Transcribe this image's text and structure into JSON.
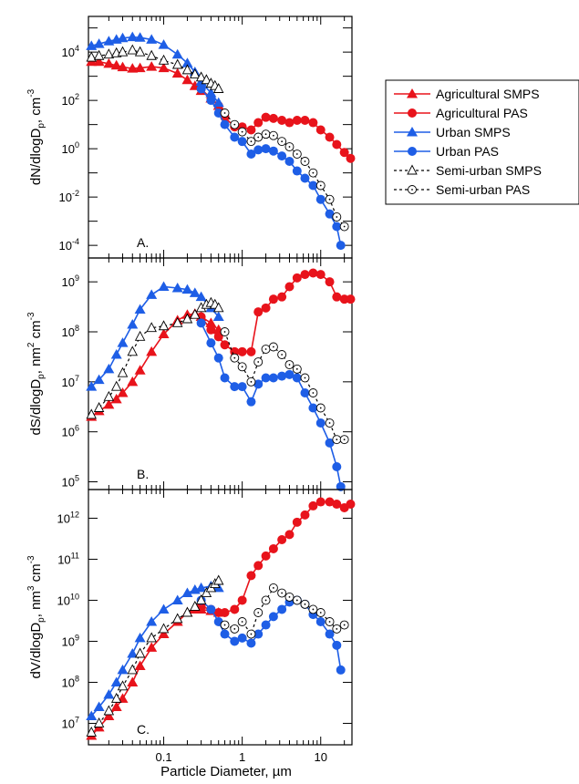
{
  "figure": {
    "xlabel": "Particle Diameter, µm",
    "panel_labels": [
      "A.",
      "B.",
      "C."
    ]
  },
  "legend": {
    "placement": "right",
    "entries": [
      {
        "label": "Agricultural SMPS",
        "color": "#e8131b",
        "marker": "triangle",
        "line": "solid"
      },
      {
        "label": "Agricultural PAS",
        "color": "#e8131b",
        "marker": "circle",
        "line": "solid"
      },
      {
        "label": "Urban SMPS",
        "color": "#1e5ee6",
        "marker": "triangle",
        "line": "solid"
      },
      {
        "label": "Urban PAS",
        "color": "#1e5ee6",
        "marker": "circle",
        "line": "solid"
      },
      {
        "label": "Semi-urban SMPS",
        "color": "#000000",
        "marker": "open-triangle",
        "line": "dashed"
      },
      {
        "label": "Semi-urban PAS",
        "color": "#000000",
        "marker": "open-circle-dot",
        "line": "dashed"
      }
    ]
  },
  "chart_data": [
    {
      "type": "line",
      "panel": "A.",
      "ylabel": {
        "base": "dN/dlogD",
        "sub": "p",
        "unit": ", cm",
        "sup": "-3"
      },
      "x_scale": "log",
      "y_scale": "log",
      "xlim": [
        0.011,
        25
      ],
      "ylim": [
        3e-05,
        300000
      ],
      "x_ticks": [
        "0.1",
        "1",
        "10"
      ],
      "y_ticks": [
        {
          "exp": "4",
          "value": 10000
        },
        {
          "exp": "2",
          "value": 100
        },
        {
          "exp": "0",
          "value": 1
        },
        {
          "exp": "-2",
          "value": 0.01
        },
        {
          "exp": "-4",
          "value": 0.0001
        }
      ],
      "series": [
        {
          "name": "Agricultural SMPS",
          "x": [
            0.012,
            0.015,
            0.02,
            0.025,
            0.03,
            0.04,
            0.05,
            0.07,
            0.1,
            0.15,
            0.2,
            0.25,
            0.3,
            0.4,
            0.5
          ],
          "y": [
            4000,
            4000,
            3300,
            2800,
            2400,
            2100,
            2200,
            2500,
            2200,
            1300,
            700,
            400,
            250,
            120,
            60
          ]
        },
        {
          "name": "Agricultural PAS",
          "x": [
            0.3,
            0.4,
            0.5,
            0.6,
            0.8,
            1,
            1.3,
            1.6,
            2,
            2.5,
            3.2,
            4,
            5,
            6.3,
            8,
            10,
            13,
            16,
            20,
            24
          ],
          "y": [
            300,
            120,
            60,
            20,
            8,
            8,
            6,
            12,
            20,
            18,
            15,
            12,
            15,
            15,
            12,
            6,
            3,
            1.5,
            0.7,
            0.4
          ]
        },
        {
          "name": "Urban SMPS",
          "x": [
            0.012,
            0.015,
            0.02,
            0.025,
            0.03,
            0.04,
            0.05,
            0.07,
            0.1,
            0.15,
            0.2,
            0.25,
            0.3,
            0.4,
            0.5
          ],
          "y": [
            18000,
            22000,
            28000,
            33000,
            38000,
            42000,
            40000,
            33000,
            20000,
            8000,
            3500,
            1500,
            600,
            200,
            80
          ]
        },
        {
          "name": "Urban PAS",
          "x": [
            0.3,
            0.4,
            0.5,
            0.6,
            0.8,
            1,
            1.3,
            1.6,
            2,
            2.5,
            3.2,
            4,
            5,
            6.3,
            8,
            10,
            13,
            16,
            18
          ],
          "y": [
            300,
            100,
            30,
            10,
            3,
            2,
            0.6,
            0.9,
            1,
            0.8,
            0.5,
            0.3,
            0.12,
            0.06,
            0.03,
            0.008,
            0.002,
            0.0006,
            0.0001
          ]
        },
        {
          "name": "Semi-urban SMPS",
          "x": [
            0.012,
            0.015,
            0.02,
            0.025,
            0.03,
            0.04,
            0.05,
            0.07,
            0.1,
            0.15,
            0.2,
            0.25,
            0.3,
            0.35,
            0.4,
            0.45,
            0.5
          ],
          "y": [
            6000,
            7000,
            8000,
            9000,
            10000,
            12000,
            10000,
            7000,
            4500,
            3000,
            1800,
            1200,
            900,
            700,
            500,
            400,
            300
          ]
        },
        {
          "name": "Semi-urban PAS",
          "x": [
            0.6,
            0.8,
            1,
            1.3,
            1.6,
            2,
            2.5,
            3.2,
            4,
            5,
            6.3,
            8,
            10,
            13,
            16,
            20
          ],
          "y": [
            30,
            10,
            5,
            2,
            3,
            4,
            3.5,
            2,
            1.2,
            0.6,
            0.3,
            0.1,
            0.03,
            0.008,
            0.0015,
            0.0006
          ]
        }
      ]
    },
    {
      "type": "line",
      "panel": "B.",
      "ylabel": {
        "base": "dS/dlogD",
        "sub": "p",
        "unit": ", nm",
        "sup": "2",
        "tail": " cm",
        "sup2": "-3"
      },
      "x_scale": "log",
      "y_scale": "log",
      "xlim": [
        0.011,
        25
      ],
      "ylim": [
        70000,
        3000000000
      ],
      "x_ticks": [
        "0.1",
        "1",
        "10"
      ],
      "y_ticks": [
        {
          "exp": "9",
          "value": 1000000000
        },
        {
          "exp": "8",
          "value": 100000000
        },
        {
          "exp": "7",
          "value": 10000000
        },
        {
          "exp": "6",
          "value": 1000000
        },
        {
          "exp": "5",
          "value": 100000
        }
      ],
      "series": [
        {
          "name": "Agricultural SMPS",
          "x": [
            0.012,
            0.015,
            0.02,
            0.025,
            0.03,
            0.04,
            0.05,
            0.07,
            0.1,
            0.15,
            0.2,
            0.25,
            0.3,
            0.4,
            0.5
          ],
          "y": [
            2000000,
            2600000,
            3500000,
            4500000,
            6000000,
            10000000,
            17000000,
            40000000,
            90000000,
            170000000,
            220000000,
            230000000,
            200000000,
            150000000,
            110000000
          ]
        },
        {
          "name": "Agricultural PAS",
          "x": [
            0.3,
            0.4,
            0.5,
            0.6,
            0.8,
            1,
            1.3,
            1.6,
            2,
            2.5,
            3.2,
            4,
            5,
            6.3,
            8,
            10,
            13,
            16,
            20,
            24
          ],
          "y": [
            200000000,
            110000000,
            80000000,
            55000000,
            40000000,
            40000000,
            40000000,
            250000000,
            300000000,
            450000000,
            500000000,
            800000000,
            1200000000,
            1400000000,
            1500000000,
            1400000000,
            1000000000,
            500000000,
            450000000,
            450000000
          ]
        },
        {
          "name": "Urban SMPS",
          "x": [
            0.012,
            0.015,
            0.02,
            0.025,
            0.03,
            0.04,
            0.05,
            0.07,
            0.1,
            0.15,
            0.2,
            0.25,
            0.3,
            0.4,
            0.5
          ],
          "y": [
            8000000,
            11000000,
            18000000,
            35000000,
            60000000,
            140000000,
            280000000,
            550000000,
            800000000,
            750000000,
            700000000,
            600000000,
            500000000,
            300000000,
            200000000
          ]
        },
        {
          "name": "Urban PAS",
          "x": [
            0.3,
            0.4,
            0.5,
            0.6,
            0.8,
            1,
            1.3,
            1.6,
            2,
            2.5,
            3.2,
            4,
            5,
            6.3,
            8,
            10,
            13,
            16,
            18
          ],
          "y": [
            150000000,
            60000000,
            30000000,
            12000000,
            8000000,
            8000000,
            4000000,
            9000000,
            12000000,
            12000000,
            13000000,
            14000000,
            12000000,
            6000000,
            3000000,
            1500000,
            600000,
            200000,
            80000
          ]
        },
        {
          "name": "Semi-urban SMPS",
          "x": [
            0.012,
            0.015,
            0.02,
            0.025,
            0.03,
            0.04,
            0.05,
            0.07,
            0.1,
            0.15,
            0.2,
            0.25,
            0.3,
            0.35,
            0.4,
            0.45,
            0.5
          ],
          "y": [
            2200000,
            3000000,
            5000000,
            8000000,
            15000000,
            40000000,
            80000000,
            120000000,
            130000000,
            150000000,
            180000000,
            220000000,
            300000000,
            350000000,
            380000000,
            350000000,
            300000000
          ]
        },
        {
          "name": "Semi-urban PAS",
          "x": [
            0.6,
            0.8,
            1,
            1.3,
            1.6,
            2,
            2.5,
            3.2,
            4,
            5,
            6.3,
            8,
            10,
            13,
            16,
            20
          ],
          "y": [
            100000000,
            30000000,
            20000000,
            10000000,
            25000000,
            45000000,
            50000000,
            35000000,
            22000000,
            18000000,
            12000000,
            6000000,
            3000000,
            1500000,
            700000,
            700000
          ]
        }
      ]
    },
    {
      "type": "line",
      "panel": "C.",
      "ylabel": {
        "base": "dV/dlogD",
        "sub": "p",
        "unit": ", nm",
        "sup": "3",
        "tail": " cm",
        "sup2": "-3"
      },
      "x_scale": "log",
      "y_scale": "log",
      "xlim": [
        0.011,
        25
      ],
      "ylim": [
        3000000,
        5000000000000
      ],
      "x_ticks": [
        "0.1",
        "1",
        "10"
      ],
      "y_ticks": [
        {
          "exp": "12",
          "value": 1000000000000
        },
        {
          "exp": "11",
          "value": 100000000000
        },
        {
          "exp": "10",
          "value": 10000000000
        },
        {
          "exp": "9",
          "value": 1000000000
        },
        {
          "exp": "8",
          "value": 100000000
        },
        {
          "exp": "7",
          "value": 10000000
        }
      ],
      "series": [
        {
          "name": "Agricultural SMPS",
          "x": [
            0.012,
            0.015,
            0.02,
            0.025,
            0.03,
            0.04,
            0.05,
            0.07,
            0.1,
            0.15,
            0.2,
            0.25,
            0.3,
            0.4,
            0.5
          ],
          "y": [
            5000000,
            8000000,
            15000000,
            25000000,
            40000000,
            100000000,
            250000000,
            700000000,
            1500000000,
            3000000000,
            5000000000,
            6000000000,
            6000000000,
            5500000000,
            5000000000
          ]
        },
        {
          "name": "Agricultural PAS",
          "x": [
            0.3,
            0.4,
            0.5,
            0.6,
            0.8,
            1,
            1.3,
            1.6,
            2,
            2.5,
            3.2,
            4,
            5,
            6.3,
            8,
            10,
            13,
            16,
            20,
            24
          ],
          "y": [
            7000000000,
            6000000000,
            5000000000,
            5000000000,
            6000000000,
            10000000000,
            40000000000,
            70000000000,
            120000000000,
            180000000000,
            300000000000,
            400000000000,
            800000000000,
            1200000000000,
            2000000000000,
            2500000000000,
            2500000000000,
            2200000000000,
            1800000000000,
            2200000000000
          ]
        },
        {
          "name": "Urban SMPS",
          "x": [
            0.012,
            0.015,
            0.02,
            0.025,
            0.03,
            0.04,
            0.05,
            0.07,
            0.1,
            0.15,
            0.2,
            0.25,
            0.3,
            0.4,
            0.5
          ],
          "y": [
            15000000,
            25000000,
            50000000,
            100000000,
            200000000,
            500000000,
            1200000000,
            3000000000,
            6000000000,
            10000000000,
            15000000000,
            18000000000,
            20000000000,
            22000000000,
            20000000000
          ]
        },
        {
          "name": "Urban PAS",
          "x": [
            0.3,
            0.4,
            0.5,
            0.6,
            0.8,
            1,
            1.3,
            1.6,
            2,
            2.5,
            3.2,
            4,
            5,
            6.3,
            8,
            10,
            13,
            16,
            18
          ],
          "y": [
            10000000000,
            6000000000,
            3000000000,
            1500000000,
            1000000000,
            1200000000,
            900000000,
            1500000000,
            2500000000,
            4000000000,
            6000000000,
            9000000000,
            10000000000,
            8000000000,
            4500000000,
            3000000000,
            1500000000,
            800000000,
            200000000
          ]
        },
        {
          "name": "Semi-urban SMPS",
          "x": [
            0.012,
            0.015,
            0.02,
            0.025,
            0.03,
            0.04,
            0.05,
            0.07,
            0.1,
            0.15,
            0.2,
            0.25,
            0.3,
            0.35,
            0.4,
            0.45,
            0.5
          ],
          "y": [
            6000000,
            10000000,
            20000000,
            40000000,
            80000000,
            200000000,
            500000000,
            1200000000,
            2000000000,
            3500000000,
            5000000000,
            7000000000,
            10000000000,
            15000000000,
            20000000000,
            25000000000,
            30000000000
          ]
        },
        {
          "name": "Semi-urban PAS",
          "x": [
            0.6,
            0.8,
            1,
            1.3,
            1.6,
            2,
            2.5,
            3.2,
            4,
            5,
            6.3,
            8,
            10,
            13,
            16,
            20
          ],
          "y": [
            2500000000,
            2000000000,
            3000000000,
            1500000000,
            5000000000,
            10000000000,
            20000000000,
            15000000000,
            12000000000,
            10000000000,
            8000000000,
            6000000000,
            5000000000,
            3000000000,
            2000000000,
            2500000000
          ]
        }
      ]
    }
  ]
}
